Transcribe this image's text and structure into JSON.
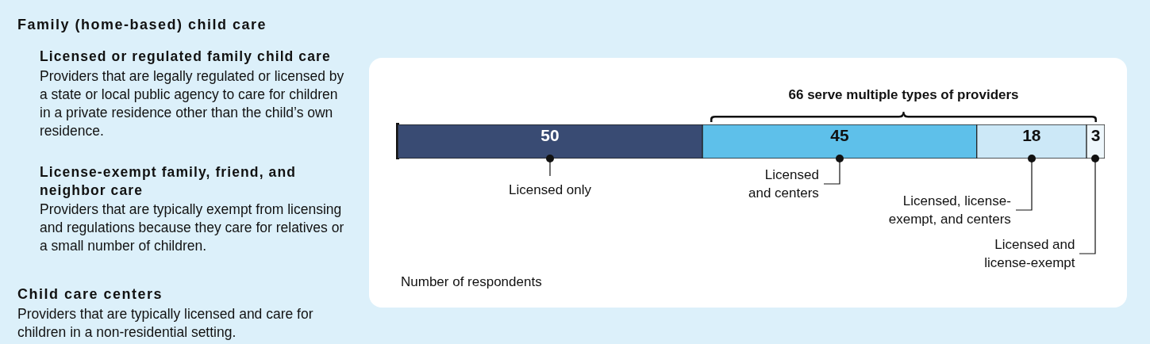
{
  "chart_data": [
    {
      "type": "other",
      "annotations": [
        "Family (home-based) child care",
        "Licensed or regulated family child care",
        "Providers that are legally regulated or licensed by a state or local public agency to care for children in a private residence other than the child’s own residence.",
        "License-exempt family, friend, and neighbor care",
        "Providers that are typically exempt from licensing and regulations because they care for relatives or a small number of children.",
        "Child care centers",
        "Providers that are typically licensed and care for children in a non-residential setting."
      ]
    },
    {
      "type": "bar",
      "orientation": "horizontal",
      "stacked": true,
      "categories": [
        null
      ],
      "series": [
        {
          "name": "Licensed only",
          "color": "#394b73",
          "values": [
            50
          ]
        },
        {
          "name": "Licensed and centers",
          "color": "#5ec0ea",
          "values": [
            45
          ]
        },
        {
          "name": "Licensed, license-exempt, and centers",
          "color": "#cce8f7",
          "values": [
            18
          ]
        },
        {
          "name": "Licensed and license-exempt",
          "color": "#eef7fc",
          "values": [
            3
          ]
        }
      ],
      "data_labels": true,
      "tick_labels": false,
      "legend": false,
      "xlabel": "Number of respondents",
      "annotations": [
        "66 serve multiple types of providers"
      ]
    }
  ]
}
